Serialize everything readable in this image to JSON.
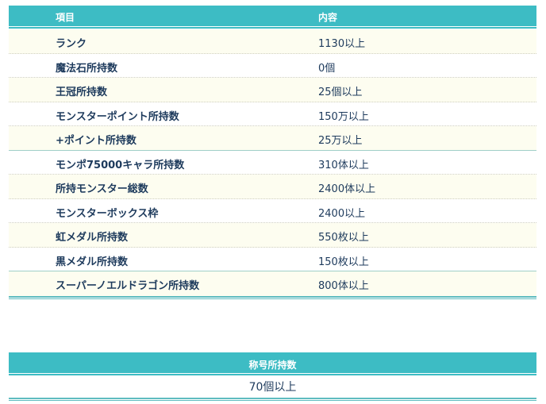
{
  "table1": {
    "headers": [
      "項目",
      "内容"
    ],
    "rows": [
      {
        "label": "ランク",
        "value": "1130以上"
      },
      {
        "label": "魔法石所持数",
        "value": "0個"
      },
      {
        "label": "王冠所持数",
        "value": "25個以上"
      },
      {
        "label": "モンスターポイント所持数",
        "value": "150万以上"
      },
      {
        "label": "+ポイント所持数",
        "value": "25万以上"
      },
      {
        "label": "モンポ75000キャラ所持数",
        "value": "310体以上"
      },
      {
        "label": "所持モンスター総数",
        "value": "2400体以上"
      },
      {
        "label": "モンスターボックス枠",
        "value": "2400以上"
      },
      {
        "label": "虹メダル所持数",
        "value": "550枚以上"
      },
      {
        "label": "黒メダル所持数",
        "value": "150枚以上"
      },
      {
        "label": "スーパーノエルドラゴン所持数",
        "value": "800体以上"
      }
    ]
  },
  "table2": {
    "header": "称号所持数",
    "value": "70個以上"
  },
  "colors": {
    "header": "#3dbcc4",
    "row_alt": "#fdfdf0",
    "text": "#1d3a5c"
  }
}
